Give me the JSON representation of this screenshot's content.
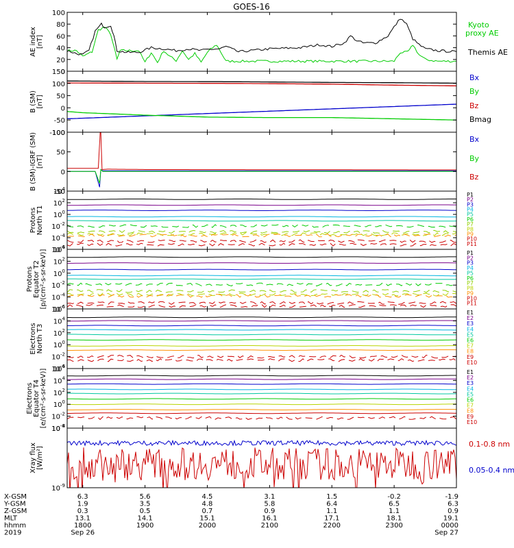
{
  "title": "GOES-16",
  "colors": {
    "black": "#000000",
    "blue": "#0000cc",
    "green": "#00cc00",
    "red": "#cc0000",
    "purple": "#7a008a",
    "cyan": "#00b4e0",
    "yellowgreen": "#b8d400",
    "orange": "#ff9000",
    "teal": "#00c8a0",
    "lime": "#90d000"
  },
  "chart_data": [
    {
      "type": "line",
      "id": "ae",
      "ylabel": "AE index [nT]",
      "ylim": [
        0,
        100
      ],
      "yticks": [
        "100",
        "80",
        "60",
        "40",
        "20",
        "0"
      ],
      "x_range_hours": [
        17.75,
        24.0
      ],
      "series": [
        {
          "name": "Kyoto proxy AE",
          "color": "#00cc00",
          "x": [
            17.75,
            17.9,
            18.0,
            18.15,
            18.25,
            18.35,
            18.45,
            18.55,
            18.6,
            18.75,
            18.9,
            19.0,
            19.1,
            19.2,
            19.3,
            19.4,
            19.5,
            19.6,
            19.7,
            19.8,
            19.9,
            20.0,
            20.05,
            20.15,
            20.3,
            20.5,
            20.9,
            21.3,
            21.7,
            22.1,
            22.5,
            22.8,
            22.9,
            23.0,
            23.1,
            23.2,
            23.25,
            23.3,
            23.4,
            23.5,
            23.7,
            24.0
          ],
          "y": [
            35,
            35,
            25,
            33,
            70,
            75,
            63,
            20,
            35,
            35,
            35,
            15,
            32,
            15,
            35,
            25,
            18,
            35,
            20,
            30,
            15,
            32,
            37,
            45,
            17,
            17,
            17,
            17,
            17,
            17,
            17,
            17,
            17,
            17,
            32,
            32,
            36,
            45,
            28,
            20,
            17,
            17
          ]
        },
        {
          "name": "Themis AE",
          "color": "#000000",
          "x": [
            17.75,
            17.9,
            18.0,
            18.1,
            18.2,
            18.3,
            18.35,
            18.45,
            18.5,
            18.55,
            18.7,
            18.9,
            19.1,
            19.3,
            19.5,
            19.7,
            19.9,
            20.0,
            20.2,
            20.3,
            20.5,
            21.0,
            21.5,
            21.8,
            22.0,
            22.2,
            22.3,
            22.4,
            22.5,
            22.7,
            22.9,
            23.0,
            23.1,
            23.2,
            23.3,
            23.4,
            23.5,
            23.7,
            24.0
          ],
          "y": [
            35,
            30,
            28,
            35,
            68,
            80,
            75,
            78,
            60,
            35,
            32,
            32,
            40,
            38,
            35,
            38,
            35,
            37,
            38,
            42,
            33,
            38,
            40,
            45,
            42,
            48,
            60,
            52,
            48,
            48,
            60,
            75,
            90,
            80,
            55,
            45,
            38,
            35,
            33
          ]
        }
      ]
    },
    {
      "type": "line",
      "id": "bsm",
      "ylabel": "B (SM) [nT]",
      "ylim": [
        -100,
        150
      ],
      "yticks": [
        "150",
        "100",
        "50",
        "0",
        "-50",
        "-100"
      ],
      "series": [
        {
          "name": "Bx",
          "color": "#0000cc",
          "x": [
            17.75,
            24.0
          ],
          "y": [
            -45,
            15
          ]
        },
        {
          "name": "By",
          "color": "#00cc00",
          "x": [
            17.75,
            18.0,
            19.0,
            20.0,
            21.0,
            22.0,
            23.0,
            24.0
          ],
          "y": [
            -15,
            -20,
            -30,
            -38,
            -40,
            -40,
            -45,
            -50
          ]
        },
        {
          "name": "Bz",
          "color": "#cc0000",
          "x": [
            17.75,
            19.0,
            20.5,
            22.0,
            23.0,
            24.0
          ],
          "y": [
            102,
            101,
            100,
            97,
            93,
            90
          ]
        },
        {
          "name": "Bmag",
          "color": "#000000",
          "x": [
            17.75,
            19.0,
            20.5,
            22.0,
            23.0,
            24.0
          ],
          "y": [
            110,
            108,
            107,
            104,
            103,
            101
          ]
        }
      ]
    },
    {
      "type": "line",
      "id": "bdiff",
      "ylabel": "B (SM)-IGRF (SM) [nT]",
      "ylim": [
        -50,
        100
      ],
      "yticks": [
        "100",
        "50",
        "0",
        "-50"
      ],
      "series": [
        {
          "name": "Bx",
          "color": "#0000cc",
          "x": [
            17.75,
            18.2,
            18.27,
            18.29,
            18.32,
            18.5,
            24.0
          ],
          "y": [
            0,
            0,
            -40,
            5,
            2,
            2,
            2
          ]
        },
        {
          "name": "By",
          "color": "#00cc00",
          "x": [
            17.75,
            18.2,
            18.27,
            18.29,
            18.32,
            18.5,
            24.0
          ],
          "y": [
            0,
            0,
            -30,
            5,
            0,
            0,
            0
          ]
        },
        {
          "name": "Bz",
          "color": "#cc0000",
          "x": [
            17.75,
            18.25,
            18.28,
            18.29,
            18.31,
            18.4,
            19.0,
            24.0
          ],
          "y": [
            8,
            8,
            100,
            100,
            5,
            6,
            5,
            4
          ]
        }
      ]
    },
    {
      "type": "line",
      "id": "p_t1",
      "log": true,
      "ylabel": "Protons North T1",
      "ylim_exp": [
        -6,
        4
      ],
      "yticks": [
        "10^4",
        "10^2",
        "10^0",
        "10^-2",
        "10^-4",
        "10^-6"
      ],
      "series": [
        {
          "name": "P1",
          "color": "#000000",
          "level": 2.6
        },
        {
          "name": "P2",
          "color": "#7a008a",
          "level": 1.6
        },
        {
          "name": "P3",
          "color": "#0000cc",
          "level": 0.7
        },
        {
          "name": "P4",
          "color": "#00b4e0",
          "level": -0.4
        },
        {
          "name": "P5",
          "color": "#00c8a0",
          "level": -1.1
        },
        {
          "name": "P6",
          "color": "#00cc00",
          "level": -2.0
        },
        {
          "name": "P7",
          "color": "#90d000",
          "level": -3.0
        },
        {
          "name": "P8",
          "color": "#b8d400",
          "level": -3.4
        },
        {
          "name": "P9",
          "color": "#ff9000",
          "level": -3.6
        },
        {
          "name": "P10",
          "color": "#cc0000",
          "level": -4.6
        },
        {
          "name": "P11",
          "color": "#cc0000",
          "level": -5.2
        }
      ]
    },
    {
      "type": "line",
      "id": "p_t2",
      "log": true,
      "ylabel": "Protons Equator T2 [p/(cm²-s-sr-keV)]",
      "ylim_exp": [
        -6,
        4
      ],
      "yticks": [
        "10^4",
        "10^2",
        "10^0",
        "10^-2",
        "10^-4",
        "10^-6"
      ],
      "series": [
        {
          "name": "P1",
          "color": "#000000",
          "level": 2.7
        },
        {
          "name": "P2",
          "color": "#7a008a",
          "level": 1.7
        },
        {
          "name": "P3",
          "color": "#0000cc",
          "level": 0.6
        },
        {
          "name": "P4",
          "color": "#00b4e0",
          "level": -0.4
        },
        {
          "name": "P5",
          "color": "#00c8a0",
          "level": -1.0
        },
        {
          "name": "P6",
          "color": "#00cc00",
          "level": -1.9
        },
        {
          "name": "P7",
          "color": "#90d000",
          "level": -3.0
        },
        {
          "name": "P8",
          "color": "#b8d400",
          "level": -3.6
        },
        {
          "name": "P9",
          "color": "#ff9000",
          "level": -3.8
        },
        {
          "name": "P10",
          "color": "#cc0000",
          "level": -5.0
        },
        {
          "name": "P11",
          "color": "#cc0000",
          "level": -5.5
        }
      ]
    },
    {
      "type": "line",
      "id": "e_t3",
      "log": true,
      "ylabel": "Electrons North T3",
      "ylim_exp": [
        -4,
        6
      ],
      "yticks": [
        "10^6",
        "10^4",
        "10^2",
        "10^0",
        "10^-2",
        "10^-4"
      ],
      "series": [
        {
          "name": "E1",
          "color": "#000000",
          "level": 4.6
        },
        {
          "name": "E2",
          "color": "#7a008a",
          "level": 4.0
        },
        {
          "name": "E3",
          "color": "#0000cc",
          "level": 3.2
        },
        {
          "name": "E4",
          "color": "#00b4e0",
          "level": 2.5
        },
        {
          "name": "E5",
          "color": "#00c8a0",
          "level": 1.7
        },
        {
          "name": "E6",
          "color": "#00cc00",
          "level": 0.8
        },
        {
          "name": "E7",
          "color": "#b8d400",
          "level": -0.2
        },
        {
          "name": "E8",
          "color": "#ff9000",
          "level": -0.9
        },
        {
          "name": "E9",
          "color": "#cc0000",
          "level": -2.0
        },
        {
          "name": "E10",
          "color": "#cc0000",
          "level": -2.6
        }
      ]
    },
    {
      "type": "line",
      "id": "e_t4",
      "log": true,
      "ylabel": "Electrons Equator T4 [e/(cm²-s-sr-keV)]",
      "ylim_exp": [
        -4,
        6
      ],
      "yticks": [
        "10^6",
        "10^4",
        "10^2",
        "10^0",
        "10^-2",
        "10^-4"
      ],
      "series": [
        {
          "name": "E1",
          "color": "#000000",
          "level": 4.8
        },
        {
          "name": "E2",
          "color": "#7a008a",
          "level": 4.2
        },
        {
          "name": "E3",
          "color": "#0000cc",
          "level": 3.4
        },
        {
          "name": "E4",
          "color": "#00b4e0",
          "level": 2.5
        },
        {
          "name": "E5",
          "color": "#00c8a0",
          "level": 1.8
        },
        {
          "name": "E6",
          "color": "#00cc00",
          "level": 0.9
        },
        {
          "name": "E7",
          "color": "#b8d400",
          "level": 0.0
        },
        {
          "name": "E8",
          "color": "#ff9000",
          "level": -0.9
        },
        {
          "name": "E9",
          "color": "#cc0000",
          "level": -1.5
        },
        {
          "name": "E10",
          "color": "#cc0000",
          "level": -2.3
        }
      ]
    },
    {
      "type": "line",
      "id": "xray",
      "log": true,
      "ylabel": "Xray flux [W/m²]",
      "ylim_exp": [
        -9,
        -8
      ],
      "yticks": [
        "10^-8",
        "10^-9"
      ],
      "series": [
        {
          "name": "0.1-0.8 nm",
          "color": "#cc0000",
          "level": -8.6
        },
        {
          "name": "0.05-0.4 nm",
          "color": "#0000cc",
          "level": -8.25
        }
      ]
    }
  ],
  "orbit": {
    "labels": [
      "X-GSM",
      "Y-GSM",
      "Z-GSM",
      "MLT",
      "hhmm",
      "2019"
    ],
    "columns": [
      {
        "values": [
          "6.3",
          "1.9",
          "0.3",
          "13.1",
          "1800",
          "Sep 26"
        ]
      },
      {
        "values": [
          "5.6",
          "3.5",
          "0.5",
          "14.1",
          "1900",
          ""
        ]
      },
      {
        "values": [
          "4.5",
          "4.8",
          "0.7",
          "15.1",
          "2000",
          ""
        ]
      },
      {
        "values": [
          "3.1",
          "5.8",
          "0.9",
          "16.1",
          "2100",
          ""
        ]
      },
      {
        "values": [
          "1.5",
          "6.4",
          "1.1",
          "17.1",
          "2200",
          ""
        ]
      },
      {
        "values": [
          "-0.2",
          "6.5",
          "1.1",
          "18.1",
          "2300",
          ""
        ]
      },
      {
        "values": [
          "-1.9",
          "6.3",
          "0.9",
          "19.1",
          "0000",
          "Sep 27"
        ]
      }
    ]
  }
}
